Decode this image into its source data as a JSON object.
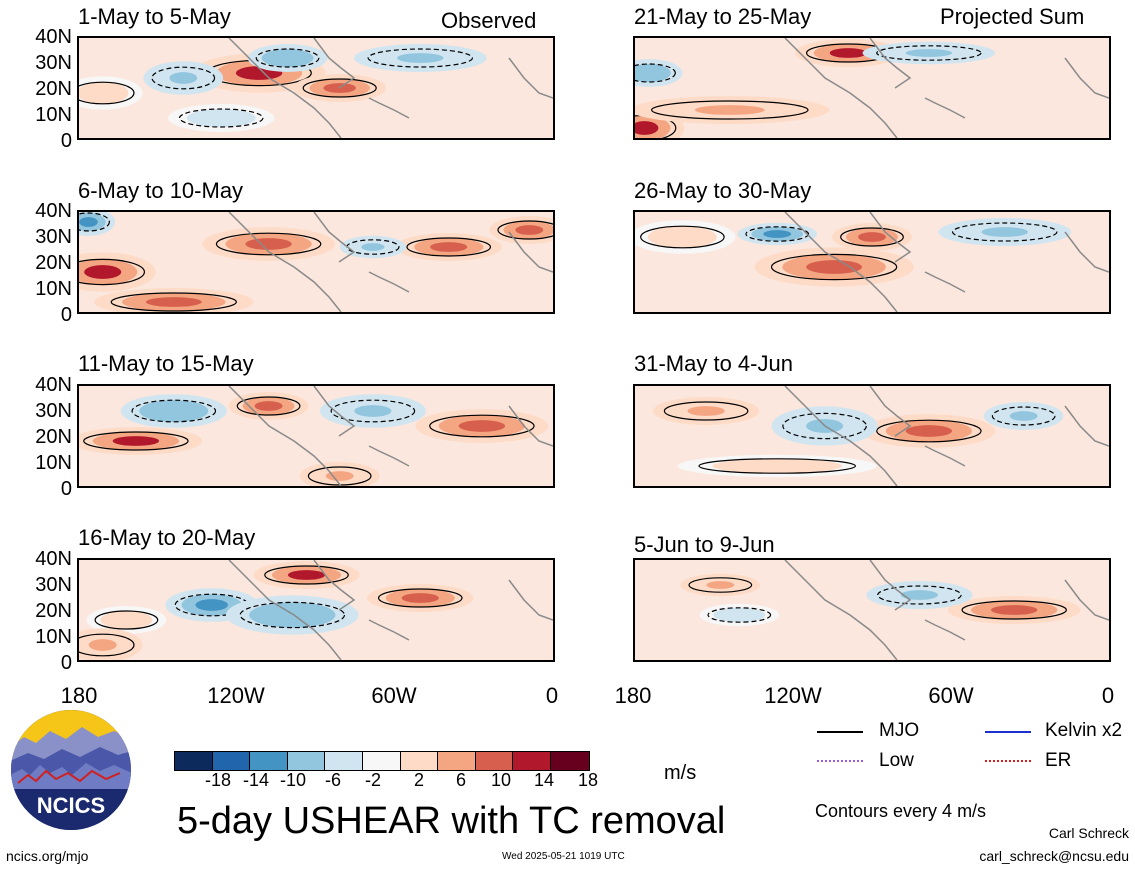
{
  "panels": [
    {
      "title": "1-May to 5-May",
      "tag": "Observed"
    },
    {
      "title": "6-May to 10-May",
      "tag": ""
    },
    {
      "title": "11-May to 15-May",
      "tag": ""
    },
    {
      "title": "16-May to 20-May",
      "tag": ""
    },
    {
      "title": "21-May to 25-May",
      "tag": "Projected Sum"
    },
    {
      "title": "26-May to 30-May",
      "tag": ""
    },
    {
      "title": "31-May to 4-Jun",
      "tag": ""
    },
    {
      "title": "5-Jun to 9-Jun",
      "tag": ""
    }
  ],
  "y_ticks": [
    "40N",
    "30N",
    "20N",
    "10N",
    "0"
  ],
  "x_ticks": [
    "180",
    "120W",
    "60W",
    "0"
  ],
  "colorbar": {
    "ticks": [
      "-18",
      "-14",
      "-10",
      "-6",
      "-2",
      "2",
      "6",
      "10",
      "14",
      "18"
    ],
    "colors": [
      "#0c2a5c",
      "#2166ac",
      "#4393c3",
      "#92c5de",
      "#d1e5f0",
      "#f7f7f7",
      "#fddbc7",
      "#f4a582",
      "#d6604d",
      "#b2182b",
      "#67001f"
    ],
    "unit": "m/s"
  },
  "legend": {
    "mjo": "MJO",
    "kelvin": "Kelvin x2",
    "low": "Low",
    "er": "ER",
    "mjo_color": "#000000",
    "kelvin_color": "#1f2fd0",
    "low_color": "#a05cd8",
    "er_color": "#d02020"
  },
  "title": "5-day USHEAR with TC removal",
  "contour_note": "Contours every 4 m/s",
  "logo_text": "NCICS",
  "footer": {
    "url": "ncics.org/mjo",
    "timestamp": "Wed 2025-05-21 1019 UTC",
    "author": "Carl Schreck",
    "email": "carl_schreck@ncsu.edu"
  }
}
